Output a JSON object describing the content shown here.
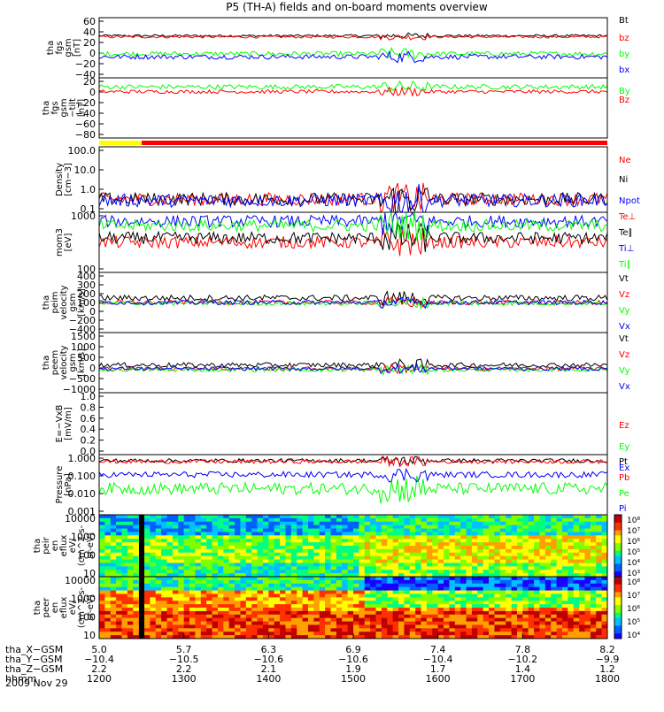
{
  "title": "P5 (TH-A) fields and on-board moments overview",
  "date_label": "2009 Nov 29",
  "colors": {
    "black": "#000000",
    "red": "#ff0000",
    "green": "#00ff00",
    "blue": "#0000ff",
    "yellow": "#ffff00"
  },
  "chart_data": [
    {
      "type": "line",
      "ylabel_lines": [
        "tha",
        "fgs",
        "gsm",
        "[nT]"
      ],
      "ylim": [
        -40,
        60
      ],
      "yticks": [
        "60",
        "40",
        "20",
        "0",
        "−20",
        "−40"
      ],
      "series": [
        {
          "name": "Bt",
          "color": "black",
          "base": 30,
          "noise": 2
        },
        {
          "name": "bz",
          "color": "red",
          "base": 28,
          "noise": 2
        },
        {
          "name": "by",
          "color": "green",
          "base": 0,
          "noise": 4
        },
        {
          "name": "bx",
          "color": "blue",
          "base": -5,
          "noise": 4
        }
      ]
    },
    {
      "type": "line",
      "ylabel_lines": [
        "tha",
        "fgs",
        "gsm",
        "−tilt",
        "[nT]"
      ],
      "ylim": [
        -80,
        20
      ],
      "yticks": [
        "20",
        "0",
        "−20",
        "−40",
        "−60",
        "−80"
      ],
      "series": [
        {
          "name": "By",
          "color": "green",
          "base": 5,
          "noise": 4
        },
        {
          "name": "Bz",
          "color": "red",
          "base": -3,
          "noise": 3
        }
      ]
    },
    {
      "type": "line",
      "log": true,
      "ylabel_lines": [
        "Density",
        "[cm−3]"
      ],
      "ylim": [
        0.1,
        100
      ],
      "yticks": [
        "100.0",
        "10.0",
        "1.0",
        "0.1"
      ],
      "series": [
        {
          "name": "Ne",
          "color": "red",
          "base": 0.4,
          "noise": 0.3
        },
        {
          "name": "Ni",
          "color": "black",
          "base": 0.4,
          "noise": 0.3
        },
        {
          "name": "Npot",
          "color": "blue",
          "base": 0.35,
          "noise": 0.3
        }
      ]
    },
    {
      "type": "line",
      "log": true,
      "ylabel_lines": [
        "mom3",
        "[eV]"
      ],
      "ylim": [
        50,
        5000
      ],
      "yticks": [
        "1000",
        "100"
      ],
      "series": [
        {
          "name": "Te⊥",
          "color": "red",
          "base": 500,
          "noise": 0.2
        },
        {
          "name": "Te∥",
          "color": "black",
          "base": 700,
          "noise": 0.2
        },
        {
          "name": "Ti⊥",
          "color": "blue",
          "base": 2500,
          "noise": 0.2
        },
        {
          "name": "Ti∥",
          "color": "green",
          "base": 1800,
          "noise": 0.2
        }
      ]
    },
    {
      "type": "line",
      "ylabel_lines": [
        "tha",
        "peim",
        "velocity",
        "gsm",
        "[km/s]"
      ],
      "ylim": [
        -400,
        400
      ],
      "yticks": [
        "400",
        "300",
        "200",
        "100",
        "0",
        "−200",
        "−400"
      ],
      "series": [
        {
          "name": "Vt",
          "color": "black",
          "base": 60,
          "noise": 40
        },
        {
          "name": "Vz",
          "color": "red",
          "base": 0,
          "noise": 30
        },
        {
          "name": "Vy",
          "color": "green",
          "base": -10,
          "noise": 30
        },
        {
          "name": "Vx",
          "color": "blue",
          "base": 0,
          "noise": 30
        }
      ]
    },
    {
      "type": "line",
      "ylabel_lines": [
        "tha",
        "peem",
        "velocity",
        "gsm",
        "[km/s]"
      ],
      "ylim": [
        -1000,
        1500
      ],
      "yticks": [
        "1500",
        "1000",
        "500",
        "0",
        "−500",
        "−1000"
      ],
      "series": [
        {
          "name": "Vt",
          "color": "black",
          "base": 150,
          "noise": 100
        },
        {
          "name": "Vz",
          "color": "red",
          "base": 0,
          "noise": 80
        },
        {
          "name": "Vy",
          "color": "green",
          "base": -50,
          "noise": 80
        },
        {
          "name": "Vx",
          "color": "blue",
          "base": 0,
          "noise": 80
        }
      ]
    },
    {
      "type": "line",
      "ylabel_lines": [
        "E=−VxB",
        "[mV/m]"
      ],
      "ylim": [
        0,
        1
      ],
      "yticks": [
        "1.0",
        "0.8",
        "0.6",
        "0.4",
        "0.2",
        "0.0"
      ],
      "series": [
        {
          "name": "Ez",
          "color": "red"
        },
        {
          "name": "Ey",
          "color": "green"
        },
        {
          "name": "Ex",
          "color": "blue"
        }
      ]
    },
    {
      "type": "line",
      "log": true,
      "ylabel_lines": [
        "Pressure",
        "[nPa]"
      ],
      "ylim": [
        0.001,
        1
      ],
      "yticks": [
        "1.000",
        "0.100",
        "0.010",
        "0.001"
      ],
      "series": [
        {
          "name": "Pt",
          "color": "black",
          "base": 0.5,
          "noise": 0.1
        },
        {
          "name": "Pb",
          "color": "red",
          "base": 0.45,
          "noise": 0.1
        },
        {
          "name": "Pe",
          "color": "green",
          "base": 0.02,
          "noise": 0.3
        },
        {
          "name": "Pi",
          "color": "blue",
          "base": 0.1,
          "noise": 0.15
        }
      ]
    },
    {
      "type": "heatmap",
      "ylabel_lines": [
        "tha",
        "peir",
        "en",
        "eflux",
        "eV/",
        "(cm^2-s-",
        "sr-eV)"
      ],
      "yticks": [
        "10000",
        "1000",
        "100",
        "10"
      ],
      "colorbar_ticks": [
        "10⁸",
        "10⁷",
        "10⁶",
        "10⁵",
        "10⁴",
        "10³"
      ]
    },
    {
      "type": "heatmap",
      "ylabel_lines": [
        "tha",
        "peer",
        "en",
        "eflux",
        "eV/",
        "(cm^2-s-",
        "sr-eV)"
      ],
      "yticks": [
        "10000",
        "1000",
        "100",
        "10"
      ],
      "colorbar_ticks": [
        "10⁸",
        "10⁷",
        "10⁶",
        "10⁵",
        "10⁴"
      ]
    }
  ],
  "xaxis": {
    "row_labels": [
      "tha_X−GSM",
      "tha_Y−GSM",
      "tha_Z−GSM",
      "hhmm"
    ],
    "columns": [
      [
        "5.0",
        "−10.4",
        "2.2",
        "1200"
      ],
      [
        "5.7",
        "−10.5",
        "2.2",
        "1300"
      ],
      [
        "6.3",
        "−10.6",
        "2.1",
        "1400"
      ],
      [
        "6.9",
        "−10.6",
        "1.9",
        "1500"
      ],
      [
        "7.4",
        "−10.4",
        "1.7",
        "1600"
      ],
      [
        "7.8",
        "−10.2",
        "1.4",
        "1700"
      ],
      [
        "8.2",
        "−9.9",
        "1.2",
        "1800"
      ]
    ]
  }
}
